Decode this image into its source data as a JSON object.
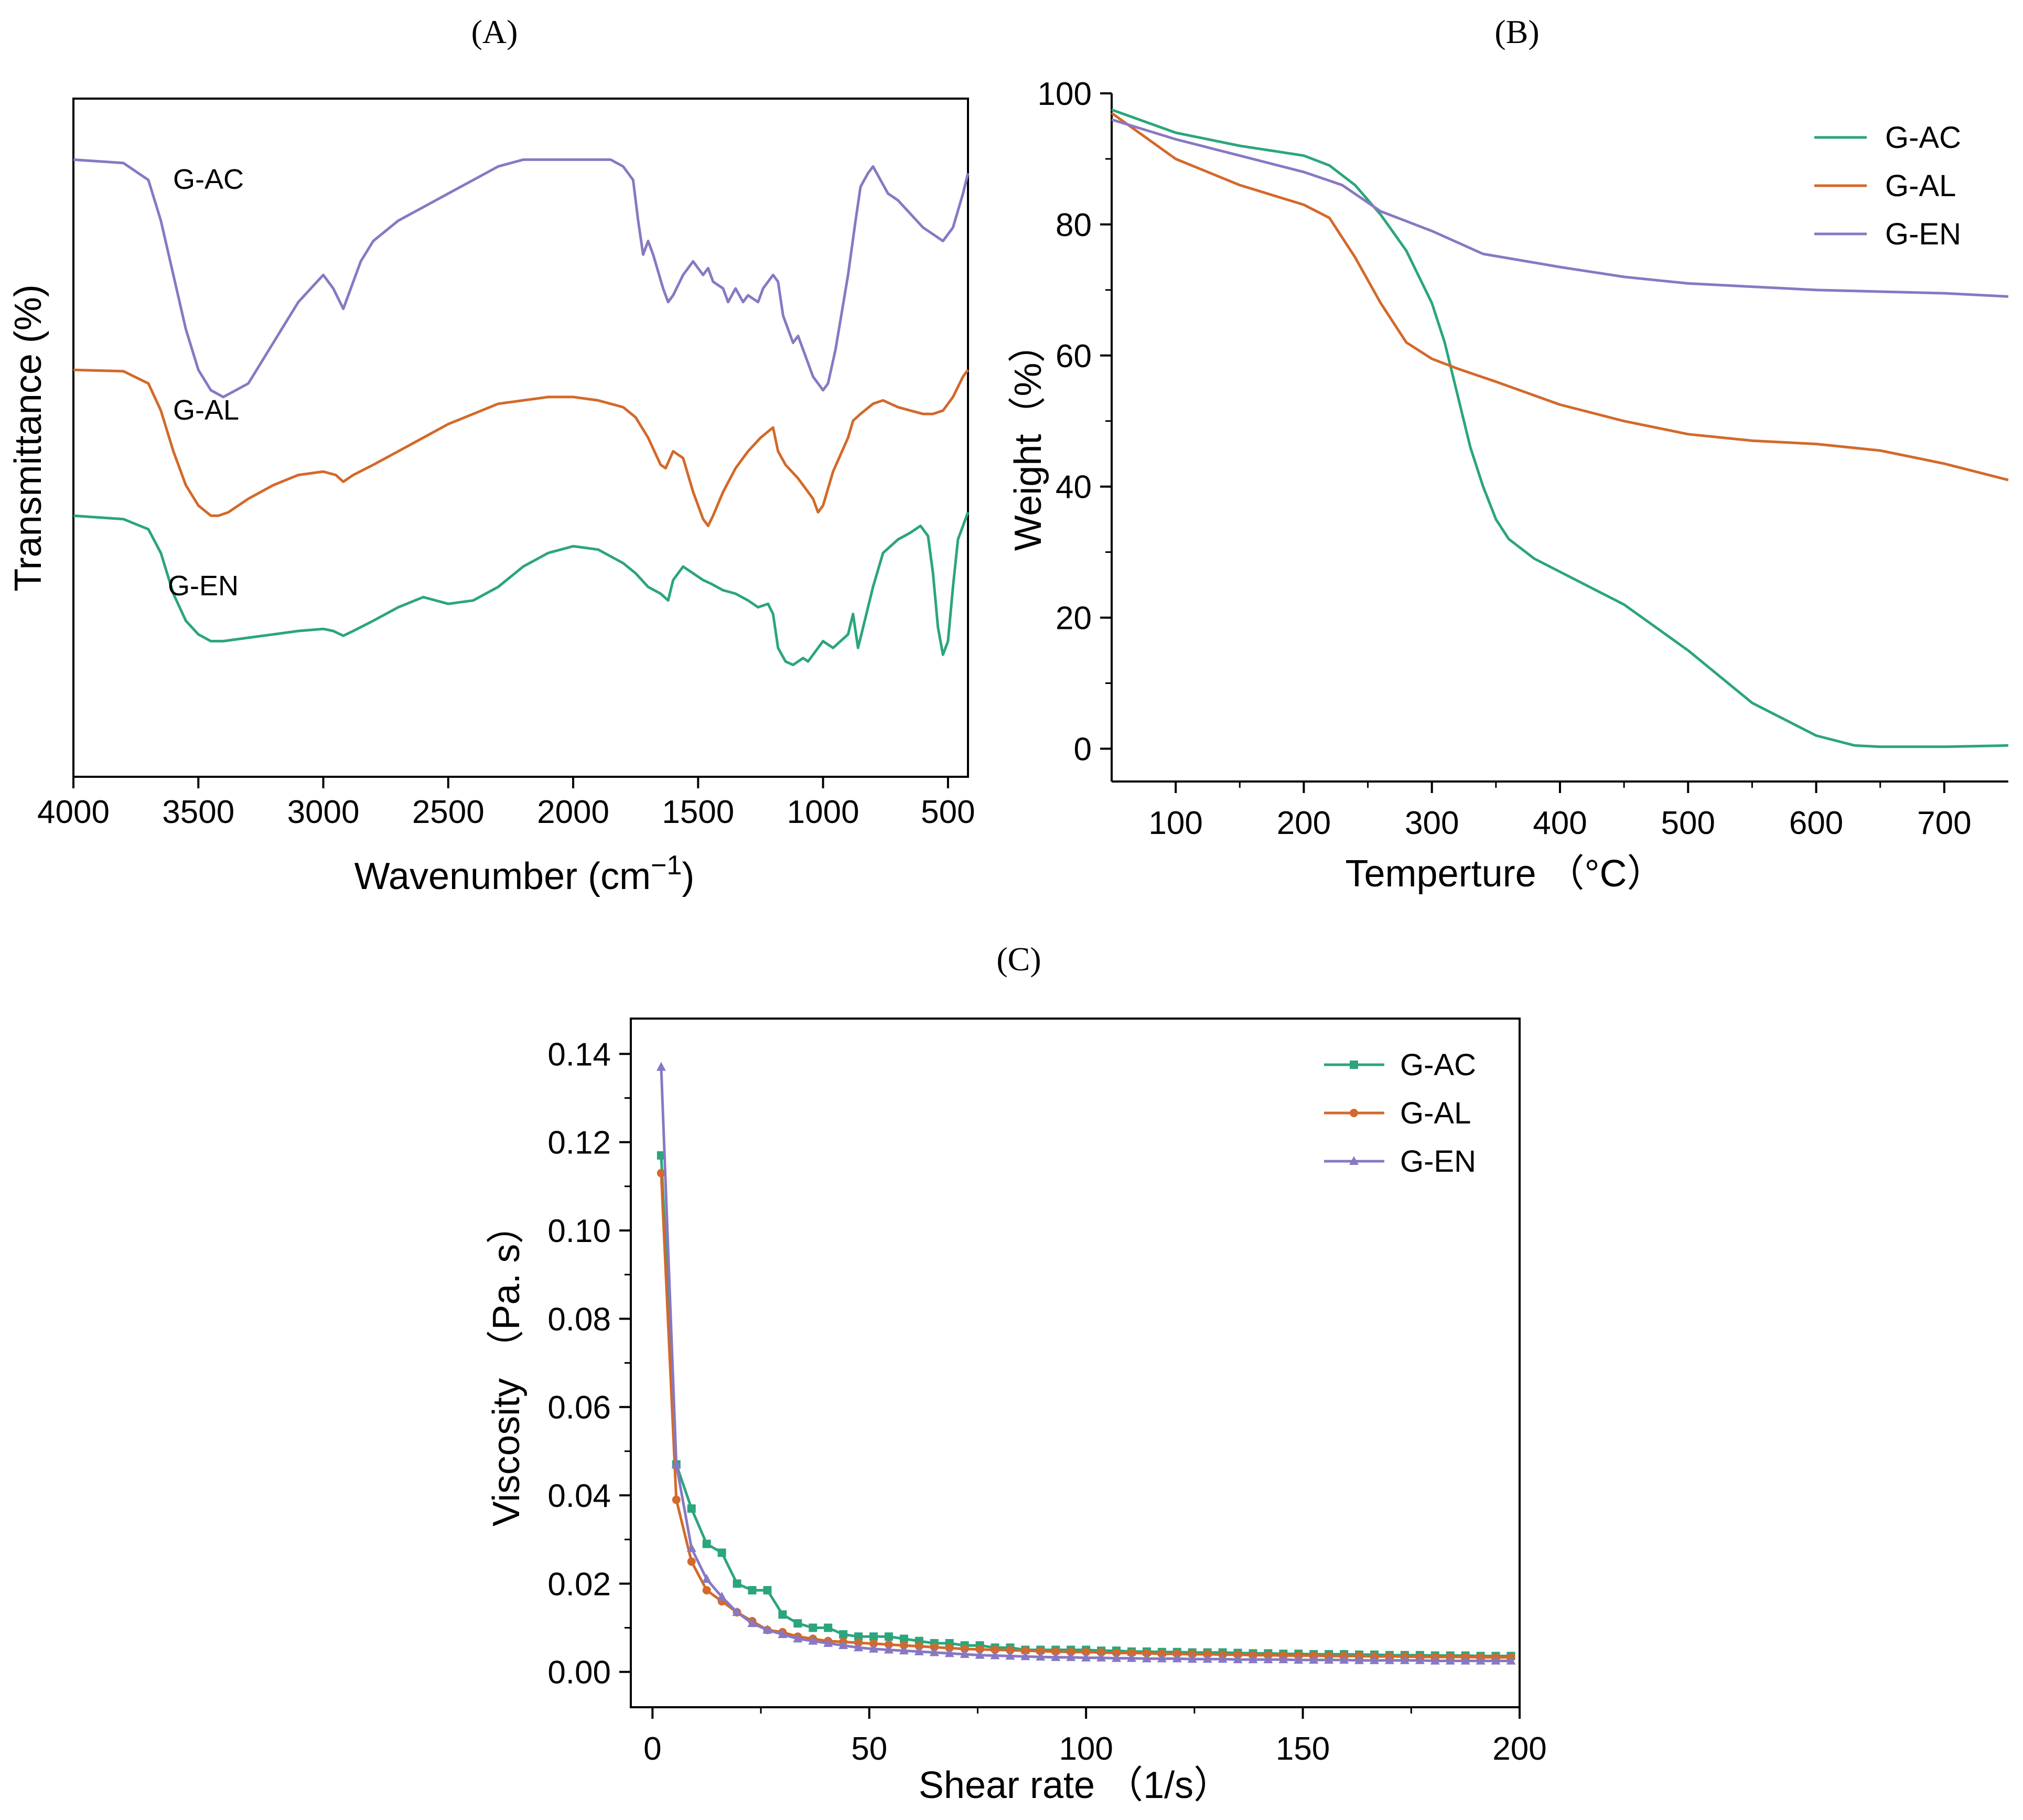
{
  "chart_data": [
    {
      "panel": "(A)",
      "panel_letter": "A",
      "type": "line",
      "title": "",
      "xlabel": "Wavenumber (cm",
      "xlabel_sup": "−1",
      "xlabel_close": ")",
      "ylabel": "Transmittance (%)",
      "xlim": [
        4000,
        420
      ],
      "x_reversed": true,
      "ylim": [
        0,
        100
      ],
      "y_ticks_shown": false,
      "xticks": [
        4000,
        3500,
        3000,
        2500,
        2000,
        1500,
        1000,
        500
      ],
      "xtick_labels": [
        "4000",
        "3500",
        "3000",
        "2500",
        "2000",
        "1500",
        "1000",
        "500"
      ],
      "legend": "inline labels",
      "series": [
        {
          "name": "G-AC",
          "label": "G-AC",
          "color": "#8878c3",
          "x": [
            4000,
            3800,
            3700,
            3650,
            3600,
            3550,
            3500,
            3450,
            3400,
            3300,
            3200,
            3100,
            3000,
            2960,
            2920,
            2880,
            2850,
            2800,
            2700,
            2600,
            2500,
            2400,
            2300,
            2200,
            2100,
            2000,
            1900,
            1850,
            1800,
            1760,
            1740,
            1720,
            1700,
            1680,
            1640,
            1620,
            1600,
            1560,
            1520,
            1500,
            1480,
            1460,
            1440,
            1400,
            1380,
            1350,
            1320,
            1300,
            1260,
            1240,
            1200,
            1180,
            1160,
            1140,
            1120,
            1100,
            1080,
            1060,
            1040,
            1020,
            1000,
            980,
            950,
            900,
            870,
            850,
            820,
            800,
            770,
            740,
            700,
            650,
            600,
            560,
            520,
            480,
            440,
            420
          ],
          "y": [
            91.0,
            90.5,
            88,
            82,
            74,
            66,
            60,
            57,
            56,
            58,
            64,
            70,
            74,
            72,
            69,
            73,
            76,
            79,
            82,
            84,
            86,
            88,
            90,
            91,
            91,
            91,
            91,
            91,
            90,
            88,
            82,
            77,
            79,
            77,
            72,
            70,
            71,
            74,
            76,
            75,
            74,
            75,
            73,
            72,
            70,
            72,
            70,
            71,
            70,
            72,
            74,
            73,
            68,
            66,
            64,
            65,
            63,
            61,
            59,
            58,
            57,
            58,
            63,
            74,
            82,
            87,
            89,
            90,
            88,
            86,
            85,
            83,
            81,
            80,
            79,
            81,
            86,
            89
          ]
        },
        {
          "name": "G-AL",
          "label": "G-AL",
          "color": "#d3692a",
          "x": [
            4000,
            3800,
            3700,
            3650,
            3600,
            3550,
            3500,
            3450,
            3420,
            3380,
            3300,
            3200,
            3100,
            3000,
            2950,
            2920,
            2880,
            2800,
            2700,
            2600,
            2500,
            2400,
            2300,
            2200,
            2100,
            2000,
            1900,
            1800,
            1750,
            1700,
            1650,
            1630,
            1600,
            1560,
            1520,
            1480,
            1460,
            1440,
            1400,
            1350,
            1300,
            1250,
            1200,
            1180,
            1150,
            1100,
            1060,
            1040,
            1020,
            1000,
            960,
            900,
            880,
            850,
            800,
            760,
            700,
            650,
            600,
            560,
            520,
            480,
            440,
            420
          ],
          "y": [
            60.0,
            59.8,
            58,
            54,
            48,
            43,
            40,
            38.5,
            38.5,
            39,
            41,
            43,
            44.5,
            45,
            44.5,
            43.5,
            44.5,
            46,
            48,
            50,
            52,
            53.5,
            55,
            55.5,
            56,
            56,
            55.5,
            54.5,
            53,
            50,
            46,
            45.5,
            48,
            47,
            42,
            38,
            37,
            38.5,
            42,
            45.5,
            48,
            50,
            51.5,
            48,
            46,
            44,
            42,
            41,
            39,
            40,
            45,
            50,
            52.5,
            53.5,
            55,
            55.5,
            54.5,
            54,
            53.5,
            53.5,
            54,
            56,
            59,
            60
          ]
        },
        {
          "name": "G-EN",
          "label": "G-EN",
          "color": "#2ba57d",
          "x": [
            4000,
            3800,
            3700,
            3650,
            3600,
            3550,
            3500,
            3450,
            3400,
            3300,
            3200,
            3100,
            3000,
            2960,
            2920,
            2880,
            2800,
            2700,
            2600,
            2500,
            2400,
            2300,
            2200,
            2100,
            2000,
            1900,
            1800,
            1750,
            1700,
            1650,
            1620,
            1600,
            1560,
            1520,
            1480,
            1450,
            1400,
            1350,
            1300,
            1260,
            1220,
            1200,
            1180,
            1150,
            1120,
            1100,
            1080,
            1060,
            1040,
            1020,
            1000,
            960,
            900,
            880,
            860,
            840,
            800,
            760,
            700,
            650,
            610,
            580,
            560,
            540,
            520,
            500,
            480,
            460,
            440,
            420
          ],
          "y": [
            38.5,
            38.0,
            36.5,
            33,
            27,
            23,
            21,
            20,
            20,
            20.5,
            21,
            21.5,
            21.8,
            21.5,
            20.8,
            21.5,
            23,
            25,
            26.5,
            25.5,
            26,
            28,
            31,
            33,
            34,
            33.5,
            31.5,
            30,
            28,
            27,
            26,
            29,
            31,
            30,
            29,
            28.5,
            27.5,
            27,
            26,
            25,
            25.5,
            24,
            19,
            17,
            16.5,
            17,
            17.5,
            17,
            18,
            19,
            20,
            19,
            21,
            24,
            19,
            22,
            28,
            33,
            35,
            36,
            37,
            35.5,
            30,
            22,
            18,
            20,
            28,
            35,
            37,
            39
          ]
        }
      ]
    },
    {
      "panel": "(B)",
      "panel_letter": "B",
      "type": "line",
      "title": "",
      "xlabel": "Temperture",
      "xlabel_unit": "（°C）",
      "ylabel": "Weight（%）",
      "xlim": [
        50,
        750
      ],
      "ylim": [
        -5,
        100
      ],
      "xticks": [
        100,
        200,
        300,
        400,
        500,
        600,
        700
      ],
      "xtick_labels": [
        "100",
        "200",
        "300",
        "400",
        "500",
        "600",
        "700"
      ],
      "yticks": [
        0,
        20,
        40,
        60,
        80,
        100
      ],
      "ytick_labels": [
        "0",
        "20",
        "40",
        "60",
        "80",
        "100"
      ],
      "legend": "top-right",
      "series": [
        {
          "name": "G-AC",
          "label": "G-AC",
          "color": "#2ba57d",
          "x": [
            50,
            100,
            150,
            200,
            220,
            240,
            260,
            280,
            300,
            310,
            320,
            330,
            340,
            350,
            360,
            380,
            400,
            450,
            500,
            550,
            600,
            630,
            650,
            700,
            750
          ],
          "y": [
            97.5,
            94,
            92,
            90.5,
            89,
            86,
            81.5,
            76,
            68,
            62,
            54,
            46,
            40,
            35,
            32,
            29,
            27,
            22,
            15,
            7,
            2,
            0.5,
            0.3,
            0.3,
            0.5
          ]
        },
        {
          "name": "G-AL",
          "label": "G-AL",
          "color": "#d3692a",
          "x": [
            50,
            100,
            150,
            200,
            220,
            240,
            260,
            280,
            300,
            320,
            350,
            400,
            450,
            500,
            550,
            600,
            650,
            700,
            750
          ],
          "y": [
            97,
            90,
            86,
            83,
            81,
            75,
            68,
            62,
            59.5,
            58,
            56,
            52.5,
            50,
            48,
            47,
            46.5,
            45.5,
            43.5,
            41
          ]
        },
        {
          "name": "G-EN",
          "label": "G-EN",
          "color": "#8878c3",
          "x": [
            50,
            100,
            150,
            200,
            230,
            260,
            300,
            340,
            400,
            450,
            500,
            600,
            700,
            750
          ],
          "y": [
            96,
            93,
            90.5,
            88,
            86,
            82,
            79,
            75.5,
            73.5,
            72,
            71,
            70,
            69.5,
            69
          ]
        }
      ]
    },
    {
      "panel": "(C)",
      "panel_letter": "C",
      "type": "line",
      "title": "",
      "xlabel": "Shear rate",
      "xlabel_unit": "（1/s）",
      "ylabel": "Viscosity",
      "ylabel_unit": "（Pa. s）",
      "xlim": [
        -5,
        200
      ],
      "ylim": [
        -0.008,
        0.148
      ],
      "xticks": [
        0,
        50,
        100,
        150,
        200
      ],
      "xtick_labels": [
        "0",
        "50",
        "100",
        "150",
        "200"
      ],
      "yticks": [
        0.0,
        0.02,
        0.04,
        0.06,
        0.08,
        0.1,
        0.12,
        0.14
      ],
      "ytick_labels": [
        "0.00",
        "0.02",
        "0.04",
        "0.06",
        "0.08",
        "0.10",
        "0.12",
        "0.14"
      ],
      "legend": "top-right",
      "series": [
        {
          "name": "G-AC",
          "label": "G-AC",
          "color": "#2ba57d",
          "marker": "square",
          "x": [
            2,
            5.5,
            9,
            12.5,
            16,
            19.5,
            23,
            26.5,
            30,
            33.5,
            37,
            40.5,
            44,
            47.5,
            51,
            54.5,
            58,
            61.5,
            65,
            68.5,
            72,
            75.5,
            79,
            82.5,
            86,
            89.5,
            93,
            96.5,
            100,
            103.5,
            107,
            110.5,
            114,
            117.5,
            121,
            124.5,
            128,
            131.5,
            135,
            138.5,
            142,
            145.5,
            149,
            152.5,
            156,
            159.5,
            163,
            166.5,
            170,
            173.5,
            177,
            180.5,
            184,
            187.5,
            191,
            194.5,
            198
          ],
          "y": [
            0.117,
            0.047,
            0.037,
            0.029,
            0.027,
            0.02,
            0.0185,
            0.0185,
            0.013,
            0.011,
            0.01,
            0.01,
            0.0085,
            0.008,
            0.008,
            0.008,
            0.0075,
            0.007,
            0.0065,
            0.0065,
            0.006,
            0.006,
            0.0055,
            0.0055,
            0.005,
            0.005,
            0.005,
            0.005,
            0.005,
            0.0048,
            0.0048,
            0.0046,
            0.0046,
            0.0045,
            0.0045,
            0.0044,
            0.0044,
            0.0044,
            0.0043,
            0.0042,
            0.0042,
            0.0041,
            0.0041,
            0.004,
            0.004,
            0.004,
            0.0039,
            0.0039,
            0.0038,
            0.0038,
            0.0038,
            0.0037,
            0.0037,
            0.0037,
            0.0036,
            0.0036,
            0.0036
          ]
        },
        {
          "name": "G-AL",
          "label": "G-AL",
          "color": "#d3692a",
          "marker": "circle",
          "x": [
            2,
            5.5,
            9,
            12.5,
            16,
            19.5,
            23,
            26.5,
            30,
            33.5,
            37,
            40.5,
            44,
            47.5,
            51,
            54.5,
            58,
            61.5,
            65,
            68.5,
            72,
            75.5,
            79,
            82.5,
            86,
            89.5,
            93,
            96.5,
            100,
            103.5,
            107,
            110.5,
            114,
            117.5,
            121,
            124.5,
            128,
            131.5,
            135,
            138.5,
            142,
            145.5,
            149,
            152.5,
            156,
            159.5,
            163,
            166.5,
            170,
            173.5,
            177,
            180.5,
            184,
            187.5,
            191,
            194.5,
            198
          ],
          "y": [
            0.113,
            0.039,
            0.025,
            0.0185,
            0.016,
            0.0135,
            0.0115,
            0.0095,
            0.009,
            0.008,
            0.0075,
            0.007,
            0.0068,
            0.0066,
            0.0064,
            0.0062,
            0.006,
            0.0058,
            0.0056,
            0.0054,
            0.0052,
            0.0051,
            0.005,
            0.0049,
            0.0048,
            0.0047,
            0.0046,
            0.0045,
            0.0045,
            0.0044,
            0.0043,
            0.0043,
            0.0042,
            0.0041,
            0.0041,
            0.004,
            0.004,
            0.0039,
            0.0039,
            0.0038,
            0.0038,
            0.0037,
            0.0037,
            0.0037,
            0.0036,
            0.0036,
            0.0036,
            0.0035,
            0.0035,
            0.0035,
            0.0034,
            0.0034,
            0.0034,
            0.0034,
            0.0033,
            0.0033,
            0.0033
          ]
        },
        {
          "name": "G-EN",
          "label": "G-EN",
          "color": "#8878c3",
          "marker": "triangle",
          "x": [
            2,
            5.5,
            9,
            12.5,
            16,
            19.5,
            23,
            26.5,
            30,
            33.5,
            37,
            40.5,
            44,
            47.5,
            51,
            54.5,
            58,
            61.5,
            65,
            68.5,
            72,
            75.5,
            79,
            82.5,
            86,
            89.5,
            93,
            96.5,
            100,
            103.5,
            107,
            110.5,
            114,
            117.5,
            121,
            124.5,
            128,
            131.5,
            135,
            138.5,
            142,
            145.5,
            149,
            152.5,
            156,
            159.5,
            163,
            166.5,
            170,
            173.5,
            177,
            180.5,
            184,
            187.5,
            191,
            194.5,
            198
          ],
          "y": [
            0.137,
            0.047,
            0.028,
            0.021,
            0.017,
            0.0135,
            0.011,
            0.0095,
            0.0085,
            0.0075,
            0.007,
            0.0065,
            0.006,
            0.0055,
            0.0052,
            0.005,
            0.0048,
            0.0046,
            0.0044,
            0.0042,
            0.004,
            0.0038,
            0.0037,
            0.0036,
            0.0035,
            0.0034,
            0.0033,
            0.0033,
            0.0032,
            0.0032,
            0.0031,
            0.0031,
            0.003,
            0.003,
            0.003,
            0.0029,
            0.0029,
            0.0029,
            0.0028,
            0.0028,
            0.0028,
            0.0028,
            0.0027,
            0.0027,
            0.0027,
            0.0027,
            0.0026,
            0.0026,
            0.0026,
            0.0026,
            0.0026,
            0.0025,
            0.0025,
            0.0025,
            0.0025,
            0.0025,
            0.0025
          ]
        }
      ]
    }
  ]
}
